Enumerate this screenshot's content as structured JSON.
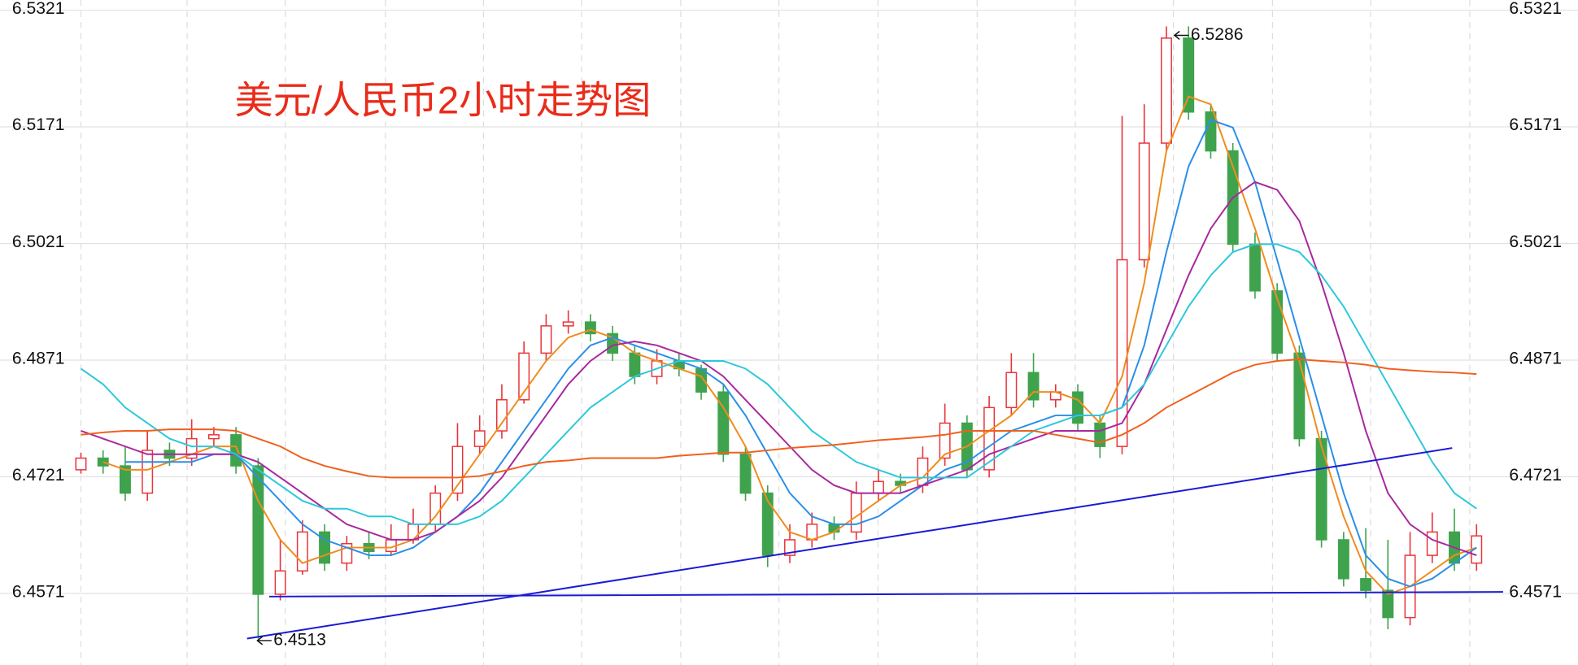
{
  "chart_data": {
    "type": "candlestick",
    "title": "美元/人民币2小时走势图",
    "ylim": [
      6.4479,
      6.5334
    ],
    "yticks": [
      6.4571,
      6.4721,
      6.4871,
      6.5021,
      6.5171,
      6.5321
    ],
    "grid": true,
    "up_color": "#e8343a",
    "down_color": "#3fa34d",
    "categories": [
      null,
      null,
      null,
      null,
      null,
      null,
      null,
      null,
      null,
      null,
      null,
      null,
      null,
      null,
      null,
      null,
      null,
      null,
      null,
      null,
      null,
      null,
      null,
      null,
      null,
      null,
      null,
      null,
      null,
      null,
      null,
      null,
      null,
      null,
      null,
      null,
      null,
      null,
      null,
      null,
      null,
      null,
      null,
      null,
      null,
      null,
      null,
      null,
      null,
      null,
      null,
      null,
      null,
      null,
      null,
      null,
      null,
      null,
      null,
      null,
      null,
      null,
      null,
      null
    ],
    "open": [
      6.473,
      6.4745,
      6.4735,
      6.47,
      6.4755,
      6.4745,
      6.477,
      6.4775,
      6.4735,
      6.457,
      6.46,
      6.465,
      6.461,
      6.4635,
      6.4625,
      6.464,
      6.466,
      6.47,
      6.476,
      6.478,
      6.482,
      6.488,
      6.4915,
      6.492,
      6.4905,
      6.488,
      6.485,
      6.487,
      6.486,
      6.483,
      6.475,
      6.47,
      6.462,
      6.464,
      6.466,
      6.465,
      6.47,
      6.4715,
      6.471,
      6.4745,
      6.479,
      6.473,
      6.481,
      6.4855,
      6.482,
      6.483,
      6.479,
      6.476,
      6.5,
      6.515,
      6.5285,
      6.519,
      6.514,
      6.502,
      6.496,
      6.488,
      6.477,
      6.464,
      6.459,
      6.4575,
      6.454,
      6.462,
      6.465,
      6.461
    ],
    "close": [
      6.4745,
      6.4735,
      6.47,
      6.4755,
      6.4745,
      6.477,
      6.4775,
      6.4735,
      6.457,
      6.46,
      6.465,
      6.461,
      6.4635,
      6.4625,
      6.464,
      6.466,
      6.47,
      6.476,
      6.478,
      6.482,
      6.488,
      6.4915,
      6.492,
      6.4905,
      6.488,
      6.485,
      6.487,
      6.486,
      6.483,
      6.475,
      6.47,
      6.462,
      6.464,
      6.466,
      6.465,
      6.47,
      6.4715,
      6.471,
      6.4745,
      6.479,
      6.473,
      6.481,
      6.4855,
      6.482,
      6.483,
      6.479,
      6.476,
      6.5,
      6.515,
      6.5285,
      6.519,
      6.514,
      6.502,
      6.496,
      6.488,
      6.477,
      6.464,
      6.459,
      6.4575,
      6.454,
      6.462,
      6.465,
      6.461,
      6.4645
    ],
    "high": [
      6.4752,
      6.4755,
      6.476,
      6.478,
      6.4765,
      6.4795,
      6.4785,
      6.4785,
      6.4745,
      6.464,
      6.4665,
      6.466,
      6.4645,
      6.465,
      6.466,
      6.468,
      6.471,
      6.479,
      6.48,
      6.484,
      6.4895,
      6.493,
      6.4935,
      6.493,
      6.4915,
      6.489,
      6.4885,
      6.488,
      6.4865,
      6.484,
      6.476,
      6.471,
      6.466,
      6.4675,
      6.467,
      6.4715,
      6.473,
      6.4725,
      6.476,
      6.4815,
      6.48,
      6.4825,
      6.488,
      6.488,
      6.484,
      6.484,
      6.48,
      6.5185,
      6.52,
      6.53,
      6.53,
      6.52,
      6.515,
      6.5035,
      6.497,
      6.489,
      6.478,
      6.465,
      6.4655,
      6.464,
      6.465,
      6.4675,
      6.468,
      6.466
    ],
    "low": [
      6.4725,
      6.4725,
      6.469,
      6.469,
      6.4735,
      6.4735,
      6.476,
      6.4725,
      6.4513,
      6.4562,
      6.4595,
      6.46,
      6.46,
      6.4615,
      6.462,
      6.4635,
      6.465,
      6.469,
      6.475,
      6.477,
      6.4815,
      6.487,
      6.4905,
      6.4895,
      6.487,
      6.484,
      6.484,
      6.485,
      6.482,
      6.474,
      6.469,
      6.4605,
      6.461,
      6.463,
      6.464,
      6.464,
      6.469,
      6.47,
      6.47,
      6.4735,
      6.472,
      6.472,
      6.48,
      6.481,
      6.481,
      6.478,
      6.4745,
      6.475,
      6.499,
      6.514,
      6.518,
      6.513,
      6.501,
      6.495,
      6.487,
      6.476,
      6.463,
      6.458,
      6.4565,
      6.4525,
      6.453,
      6.461,
      6.46,
      6.46
    ],
    "series": [
      {
        "color": "#f08c1e",
        "values": [
          null,
          6.474,
          6.473,
          6.473,
          6.474,
          6.475,
          6.476,
          6.476,
          6.469,
          6.464,
          6.461,
          6.462,
          6.463,
          6.463,
          6.463,
          6.464,
          6.467,
          6.471,
          6.475,
          6.479,
          6.483,
          6.487,
          6.49,
          6.491,
          6.49,
          6.488,
          6.487,
          6.486,
          6.485,
          6.481,
          6.476,
          6.469,
          6.465,
          6.464,
          6.465,
          6.467,
          6.469,
          6.471,
          6.472,
          6.475,
          6.476,
          6.478,
          6.48,
          6.483,
          6.483,
          6.482,
          6.479,
          6.485,
          6.497,
          6.514,
          6.521,
          6.52,
          6.512,
          6.504,
          6.495,
          6.487,
          6.476,
          6.467,
          6.46,
          6.457,
          6.458,
          6.46,
          6.462,
          6.463
        ]
      },
      {
        "color": "#2a8fe8",
        "values": [
          null,
          null,
          6.474,
          6.474,
          6.474,
          6.474,
          6.475,
          6.475,
          6.472,
          6.469,
          6.466,
          6.464,
          6.463,
          6.462,
          6.462,
          6.463,
          6.465,
          6.467,
          6.47,
          6.474,
          6.478,
          6.482,
          6.486,
          6.489,
          6.49,
          6.489,
          6.488,
          6.487,
          6.486,
          6.484,
          6.48,
          6.475,
          6.47,
          6.467,
          6.466,
          6.466,
          6.467,
          6.469,
          6.471,
          6.473,
          6.474,
          6.476,
          6.478,
          6.479,
          6.48,
          6.48,
          6.48,
          6.481,
          6.489,
          6.501,
          6.512,
          6.518,
          6.517,
          6.51,
          6.5,
          6.49,
          6.48,
          6.47,
          6.462,
          6.459,
          6.458,
          6.459,
          6.461,
          6.463
        ]
      },
      {
        "color": "#a8289e",
        "values": [
          6.478,
          6.477,
          6.476,
          6.475,
          6.475,
          6.475,
          6.475,
          6.475,
          6.474,
          6.472,
          6.47,
          6.468,
          6.466,
          6.465,
          6.464,
          6.464,
          6.465,
          6.467,
          6.469,
          6.472,
          6.476,
          6.48,
          6.484,
          6.487,
          6.489,
          6.4895,
          6.489,
          6.488,
          6.487,
          6.485,
          6.482,
          6.479,
          6.476,
          6.473,
          6.471,
          6.47,
          6.47,
          6.47,
          6.471,
          6.472,
          6.473,
          6.475,
          6.476,
          6.477,
          6.478,
          6.478,
          6.478,
          6.479,
          6.484,
          6.491,
          6.498,
          6.504,
          6.508,
          6.51,
          6.509,
          6.505,
          6.497,
          6.488,
          6.478,
          6.47,
          6.466,
          6.464,
          6.463,
          6.462
        ]
      },
      {
        "color": "#2cc8dc",
        "values": [
          6.486,
          6.484,
          6.481,
          6.479,
          6.477,
          6.476,
          6.476,
          6.475,
          6.473,
          6.471,
          6.469,
          6.468,
          6.468,
          6.467,
          6.467,
          6.466,
          6.466,
          6.466,
          6.467,
          6.469,
          6.472,
          6.475,
          6.478,
          6.481,
          6.483,
          6.485,
          6.486,
          6.487,
          6.487,
          6.487,
          6.486,
          6.484,
          6.481,
          6.478,
          6.476,
          6.474,
          6.473,
          6.472,
          6.472,
          6.472,
          6.472,
          6.474,
          6.476,
          6.478,
          6.479,
          6.48,
          6.48,
          6.481,
          6.484,
          6.489,
          6.494,
          6.498,
          6.501,
          6.502,
          6.502,
          6.501,
          6.498,
          6.494,
          6.489,
          6.484,
          6.479,
          6.474,
          6.47,
          6.468
        ]
      },
      {
        "color": "#f0601e",
        "values": [
          6.4775,
          6.4778,
          6.478,
          6.478,
          6.4782,
          6.4782,
          6.4782,
          6.478,
          6.477,
          6.476,
          6.4745,
          6.4735,
          6.4728,
          6.4722,
          6.472,
          6.472,
          6.472,
          6.472,
          6.4722,
          6.4728,
          6.4735,
          6.474,
          6.4742,
          6.4745,
          6.4745,
          6.4745,
          6.4745,
          6.4748,
          6.475,
          6.4752,
          6.4752,
          6.4755,
          6.4758,
          6.476,
          6.4762,
          6.4765,
          6.4768,
          6.477,
          6.4772,
          6.4775,
          6.478,
          6.478,
          6.478,
          6.478,
          6.4775,
          6.477,
          6.4765,
          6.4775,
          6.479,
          6.481,
          6.4825,
          6.484,
          6.4855,
          6.4865,
          6.487,
          6.4872,
          6.487,
          6.4868,
          6.4865,
          6.486,
          6.4858,
          6.4856,
          6.4855,
          6.4853
        ]
      }
    ],
    "trend_lines": [
      {
        "color": "#1a1ad6",
        "x": [
          7.5,
          61.9
        ],
        "y": [
          6.4513,
          6.4758
        ]
      },
      {
        "color": "#1a1ad6",
        "x": [
          8.5,
          64.2
        ],
        "y": [
          6.4567,
          6.4573
        ]
      }
    ],
    "annotations": [
      {
        "index": 49,
        "value": 6.5286,
        "label": "6.5286"
      },
      {
        "index": 7.6,
        "value": 6.4513,
        "label": "6.4513"
      }
    ]
  }
}
